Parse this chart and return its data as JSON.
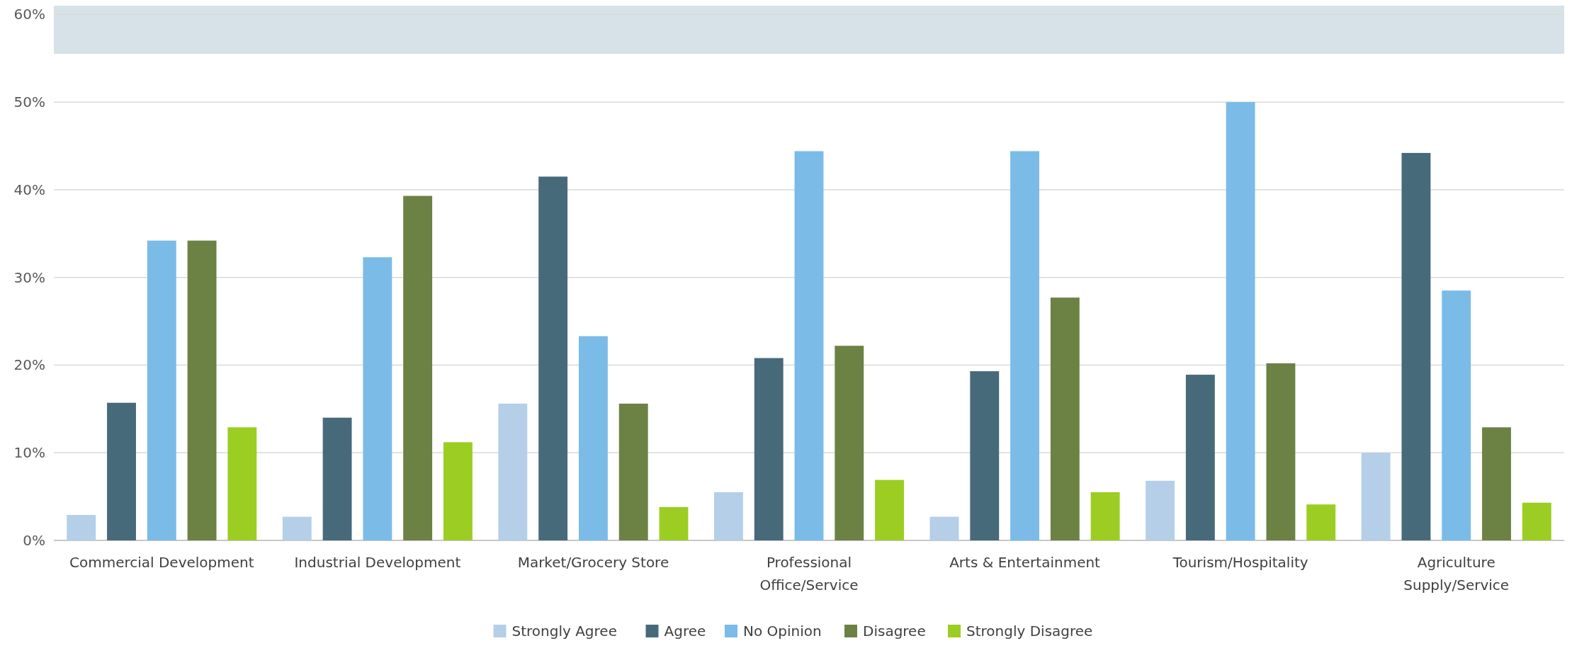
{
  "chart_data": {
    "type": "bar",
    "categories": [
      "Commercial Development",
      "Industrial Development",
      "Market/Grocery Store",
      "Professional Office/Service",
      "Arts & Entertainment",
      "Tourism/Hospitality",
      "Agriculture Supply/Service"
    ],
    "series": [
      {
        "name": "Strongly Agree",
        "color": "#b4cfe7",
        "values": [
          2.9,
          2.7,
          15.6,
          5.5,
          2.7,
          6.8,
          10.0
        ]
      },
      {
        "name": "Agree",
        "color": "#476a7b",
        "values": [
          15.7,
          14.0,
          41.5,
          20.8,
          19.3,
          18.9,
          44.2
        ]
      },
      {
        "name": "No Opinion",
        "color": "#7abbe8",
        "values": [
          34.2,
          32.3,
          23.3,
          44.4,
          44.4,
          50.0,
          28.5
        ]
      },
      {
        "name": "Disagree",
        "color": "#6b8244",
        "values": [
          34.2,
          39.3,
          15.6,
          22.2,
          27.7,
          20.2,
          12.9
        ]
      },
      {
        "name": "Strongly Disagree",
        "color": "#9ccd22",
        "values": [
          12.9,
          11.2,
          3.8,
          6.9,
          5.5,
          4.1,
          4.3
        ]
      }
    ],
    "ylim": [
      0,
      61
    ],
    "yticks": [
      {
        "value": 0,
        "label": "0%"
      },
      {
        "value": 10,
        "label": "10%"
      },
      {
        "value": 20,
        "label": "20%"
      },
      {
        "value": 30,
        "label": "30%"
      },
      {
        "value": 40,
        "label": "40%"
      },
      {
        "value": 50,
        "label": "50%"
      },
      {
        "value": 60,
        "label": "60%"
      }
    ],
    "bands": [
      {
        "axis": "y",
        "from": 55.5,
        "to": 61,
        "color": "#d7e2e8"
      }
    ],
    "grid": "y",
    "legend": "bottom"
  }
}
